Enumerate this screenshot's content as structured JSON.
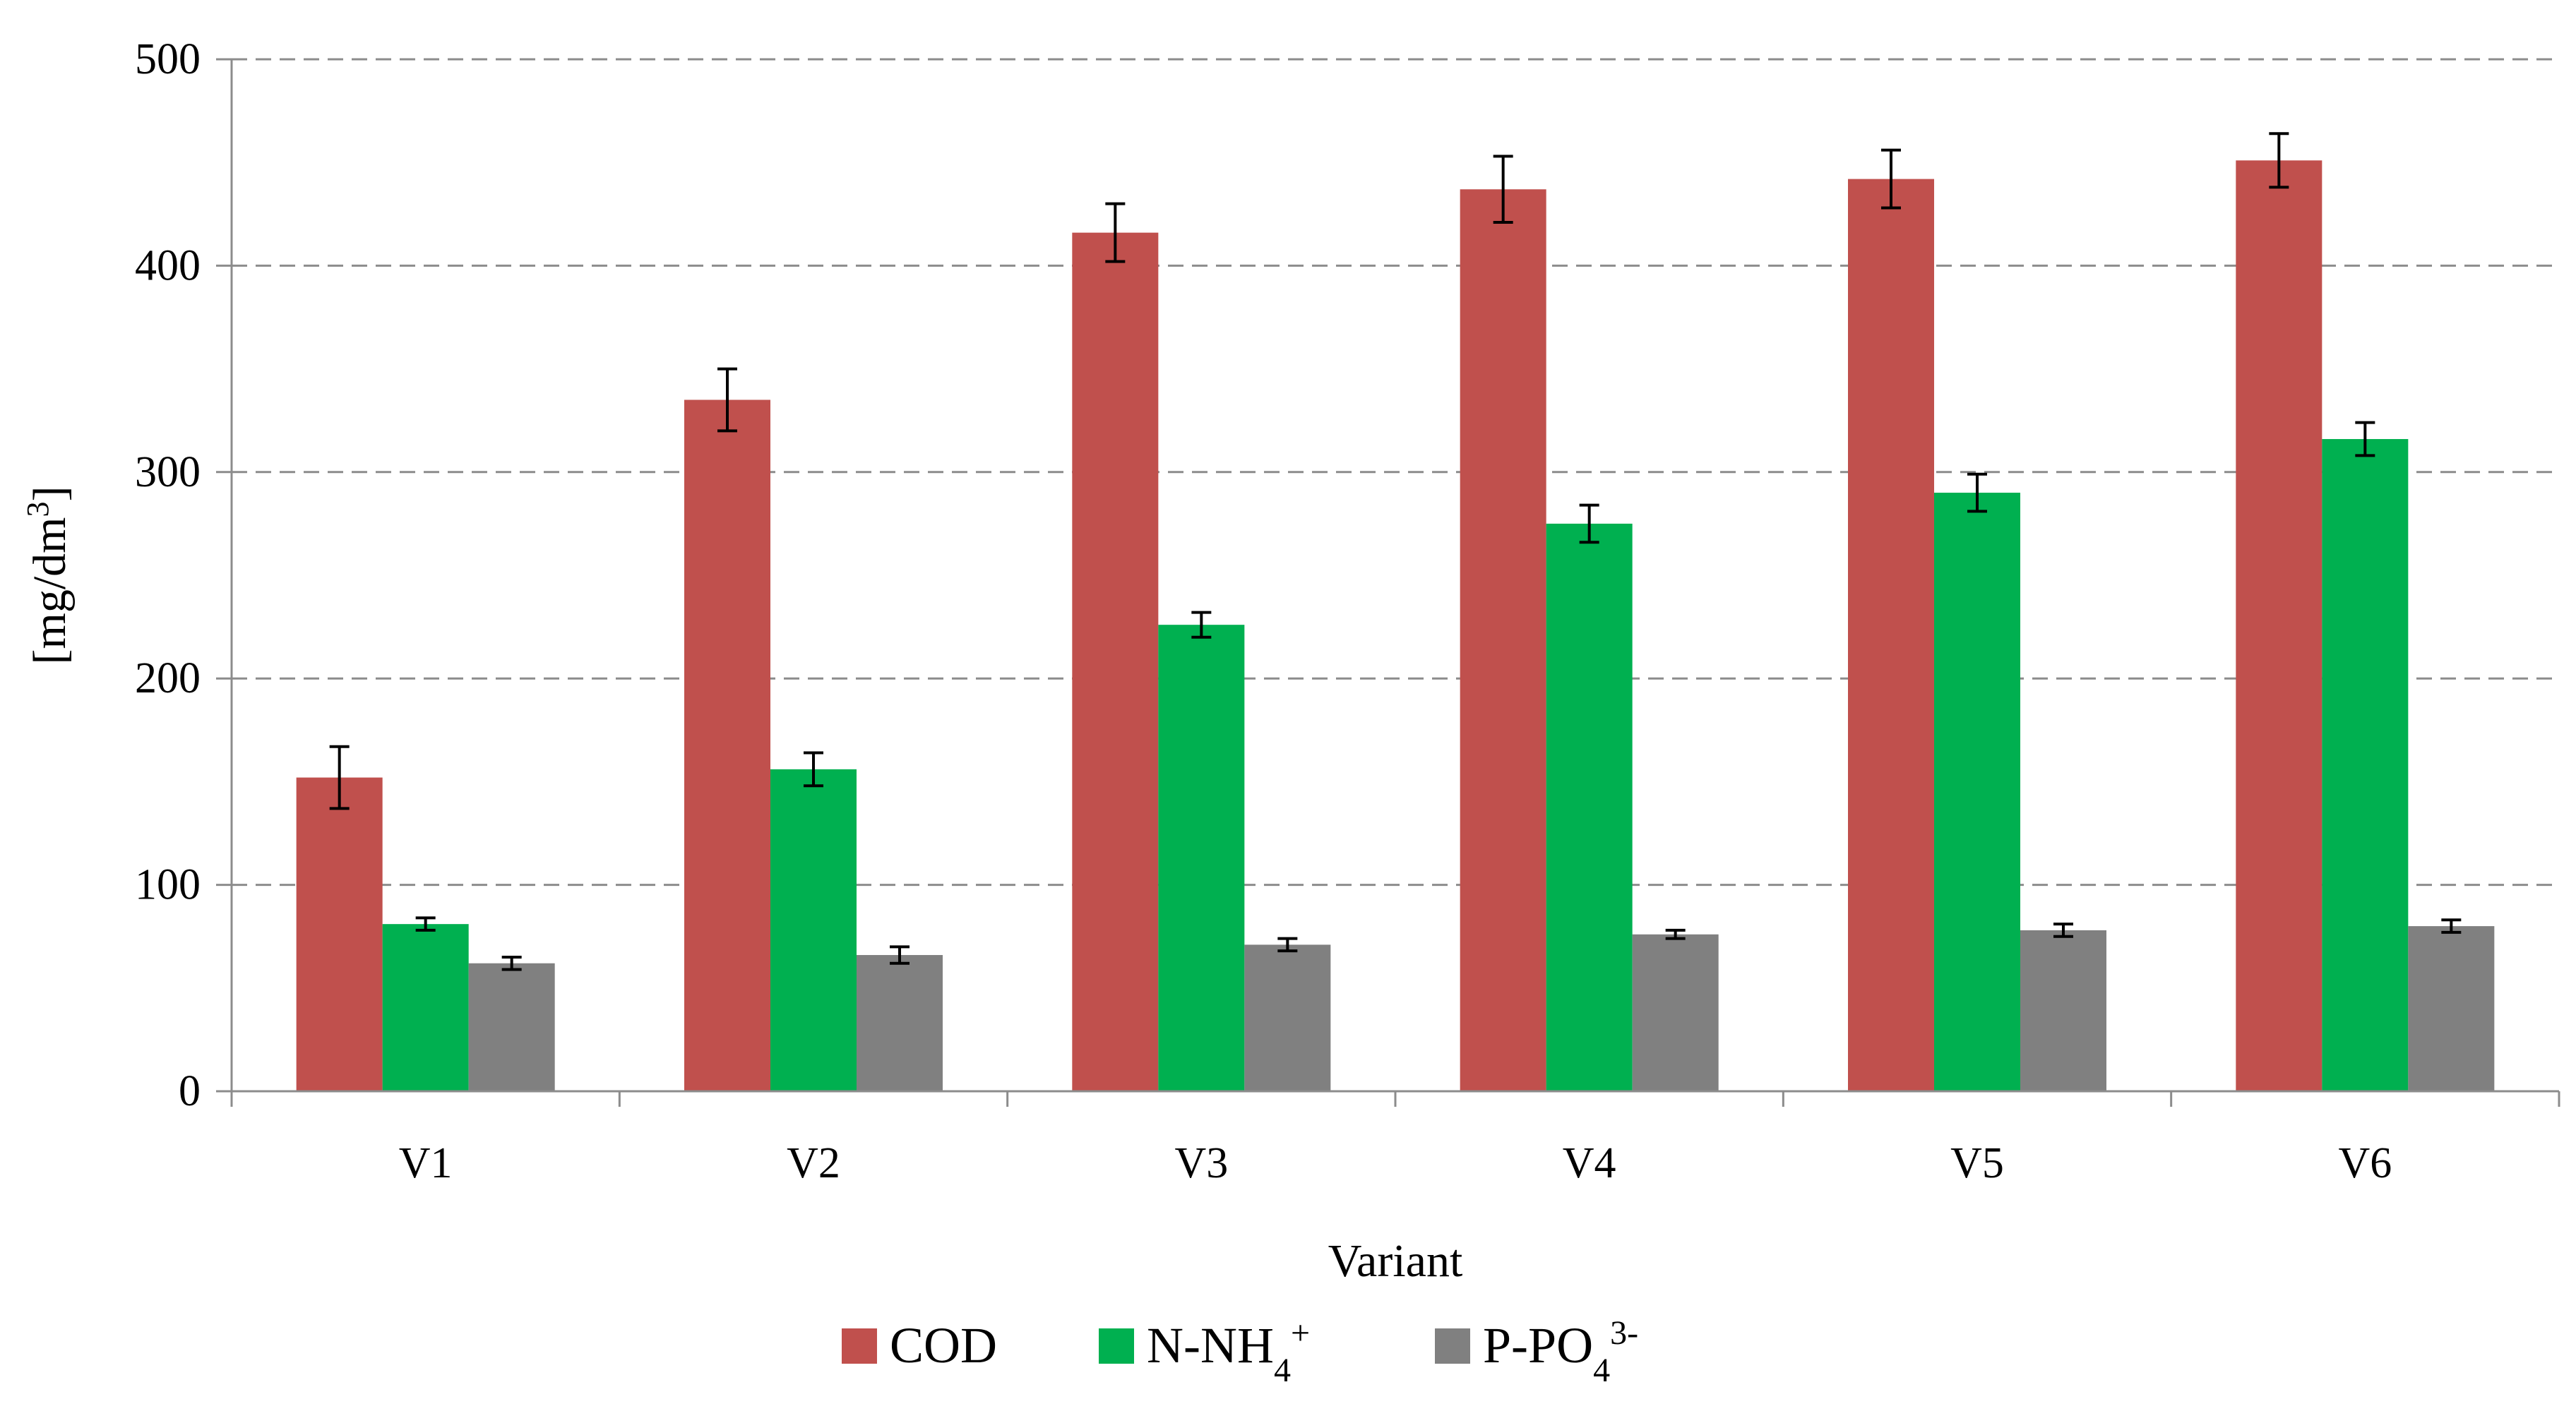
{
  "chart_data": {
    "type": "bar",
    "title": "",
    "xlabel": "Variant",
    "ylabel": "[mg/dm3]",
    "ylabel_base": "[mg/dm",
    "ylabel_sup": "3",
    "ylabel_end": "]",
    "ylim": [
      0,
      500
    ],
    "yticks": [
      0,
      100,
      200,
      300,
      400,
      500
    ],
    "grid": true,
    "legend_position": "bottom",
    "categories": [
      "V1",
      "V2",
      "V3",
      "V4",
      "V5",
      "V6"
    ],
    "series": [
      {
        "name": "COD",
        "label_base": "COD",
        "label_sub": "",
        "label_sup": "",
        "color": "#c0504d",
        "values": [
          152,
          335,
          416,
          437,
          442,
          451
        ],
        "errors": [
          15,
          15,
          14,
          16,
          14,
          13
        ]
      },
      {
        "name": "N-NH4+",
        "label_base": "N-NH",
        "label_sub": "4",
        "label_sup": "+",
        "color": "#00b050",
        "values": [
          81,
          156,
          226,
          275,
          290,
          316
        ],
        "errors": [
          3,
          8,
          6,
          9,
          9,
          8
        ]
      },
      {
        "name": "P-PO43-",
        "label_base": "P-PO",
        "label_sub": "4",
        "label_sup": "3-",
        "color": "#808080",
        "values": [
          62,
          66,
          71,
          76,
          78,
          80
        ],
        "errors": [
          3,
          4,
          3,
          2,
          3,
          3
        ]
      }
    ]
  }
}
